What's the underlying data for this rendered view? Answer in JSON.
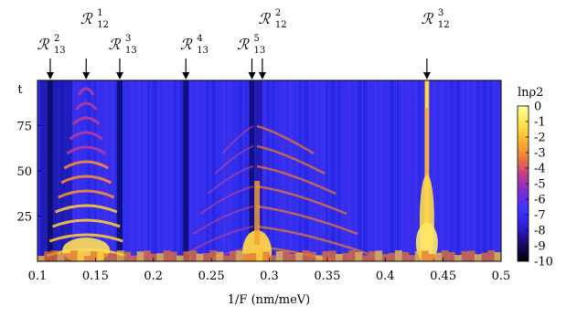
{
  "chart_data": {
    "type": "heatmap",
    "xlabel": "1/F (nm/meV)",
    "ylabel": "t",
    "xlim": [
      0.1,
      0.5
    ],
    "ylim": [
      0,
      100
    ],
    "x_ticks": [
      "0.1",
      "0.15",
      "0.2",
      "0.25",
      "0.3",
      "0.35",
      "0.4",
      "0.45",
      "0.5"
    ],
    "x_tick_values": [
      0.1,
      0.15,
      0.2,
      0.25,
      0.3,
      0.35,
      0.4,
      0.45,
      0.5
    ],
    "y_ticks": [
      "25",
      "50",
      "75"
    ],
    "y_tick_values": [
      25,
      50,
      75
    ],
    "colorbar": {
      "label": "lnρ2",
      "range": [
        -10,
        0
      ],
      "ticks": [
        "0",
        "-1",
        "-2",
        "-3",
        "-4",
        "-5",
        "-6",
        "-7",
        "-8",
        "-9",
        "-10"
      ],
      "tick_values": [
        0,
        -1,
        -2,
        -3,
        -4,
        -5,
        -6,
        -7,
        -8,
        -9,
        -10
      ],
      "colors": [
        "#000000",
        "#1b0a6b",
        "#2a1fd6",
        "#3a35ff",
        "#7a2bd6",
        "#c23a8a",
        "#f07a3a",
        "#ffb52a",
        "#ffe64a",
        "#ffffa0"
      ]
    },
    "annotations": [
      {
        "main": "ℛ",
        "sub": "13",
        "sup": "2",
        "x": 0.111
      },
      {
        "main": "ℛ",
        "sub": "12",
        "sup": "1",
        "x": 0.142
      },
      {
        "main": "ℛ",
        "sub": "13",
        "sup": "3",
        "x": 0.171
      },
      {
        "main": "ℛ",
        "sub": "13",
        "sup": "4",
        "x": 0.228
      },
      {
        "main": "ℛ",
        "sub": "13",
        "sup": "5",
        "x": 0.285
      },
      {
        "main": "ℛ",
        "sub": "12",
        "sup": "2",
        "x": 0.294
      },
      {
        "main": "ℛ",
        "sub": "12",
        "sup": "3",
        "x": 0.436
      }
    ],
    "bright_features": [
      {
        "x": 0.142,
        "kind": "revival-fan"
      },
      {
        "x": 0.291,
        "kind": "resonance-strong"
      },
      {
        "x": 0.436,
        "kind": "resonance-narrow"
      }
    ],
    "dark_lines": [
      0.111,
      0.171,
      0.228,
      0.285
    ]
  }
}
